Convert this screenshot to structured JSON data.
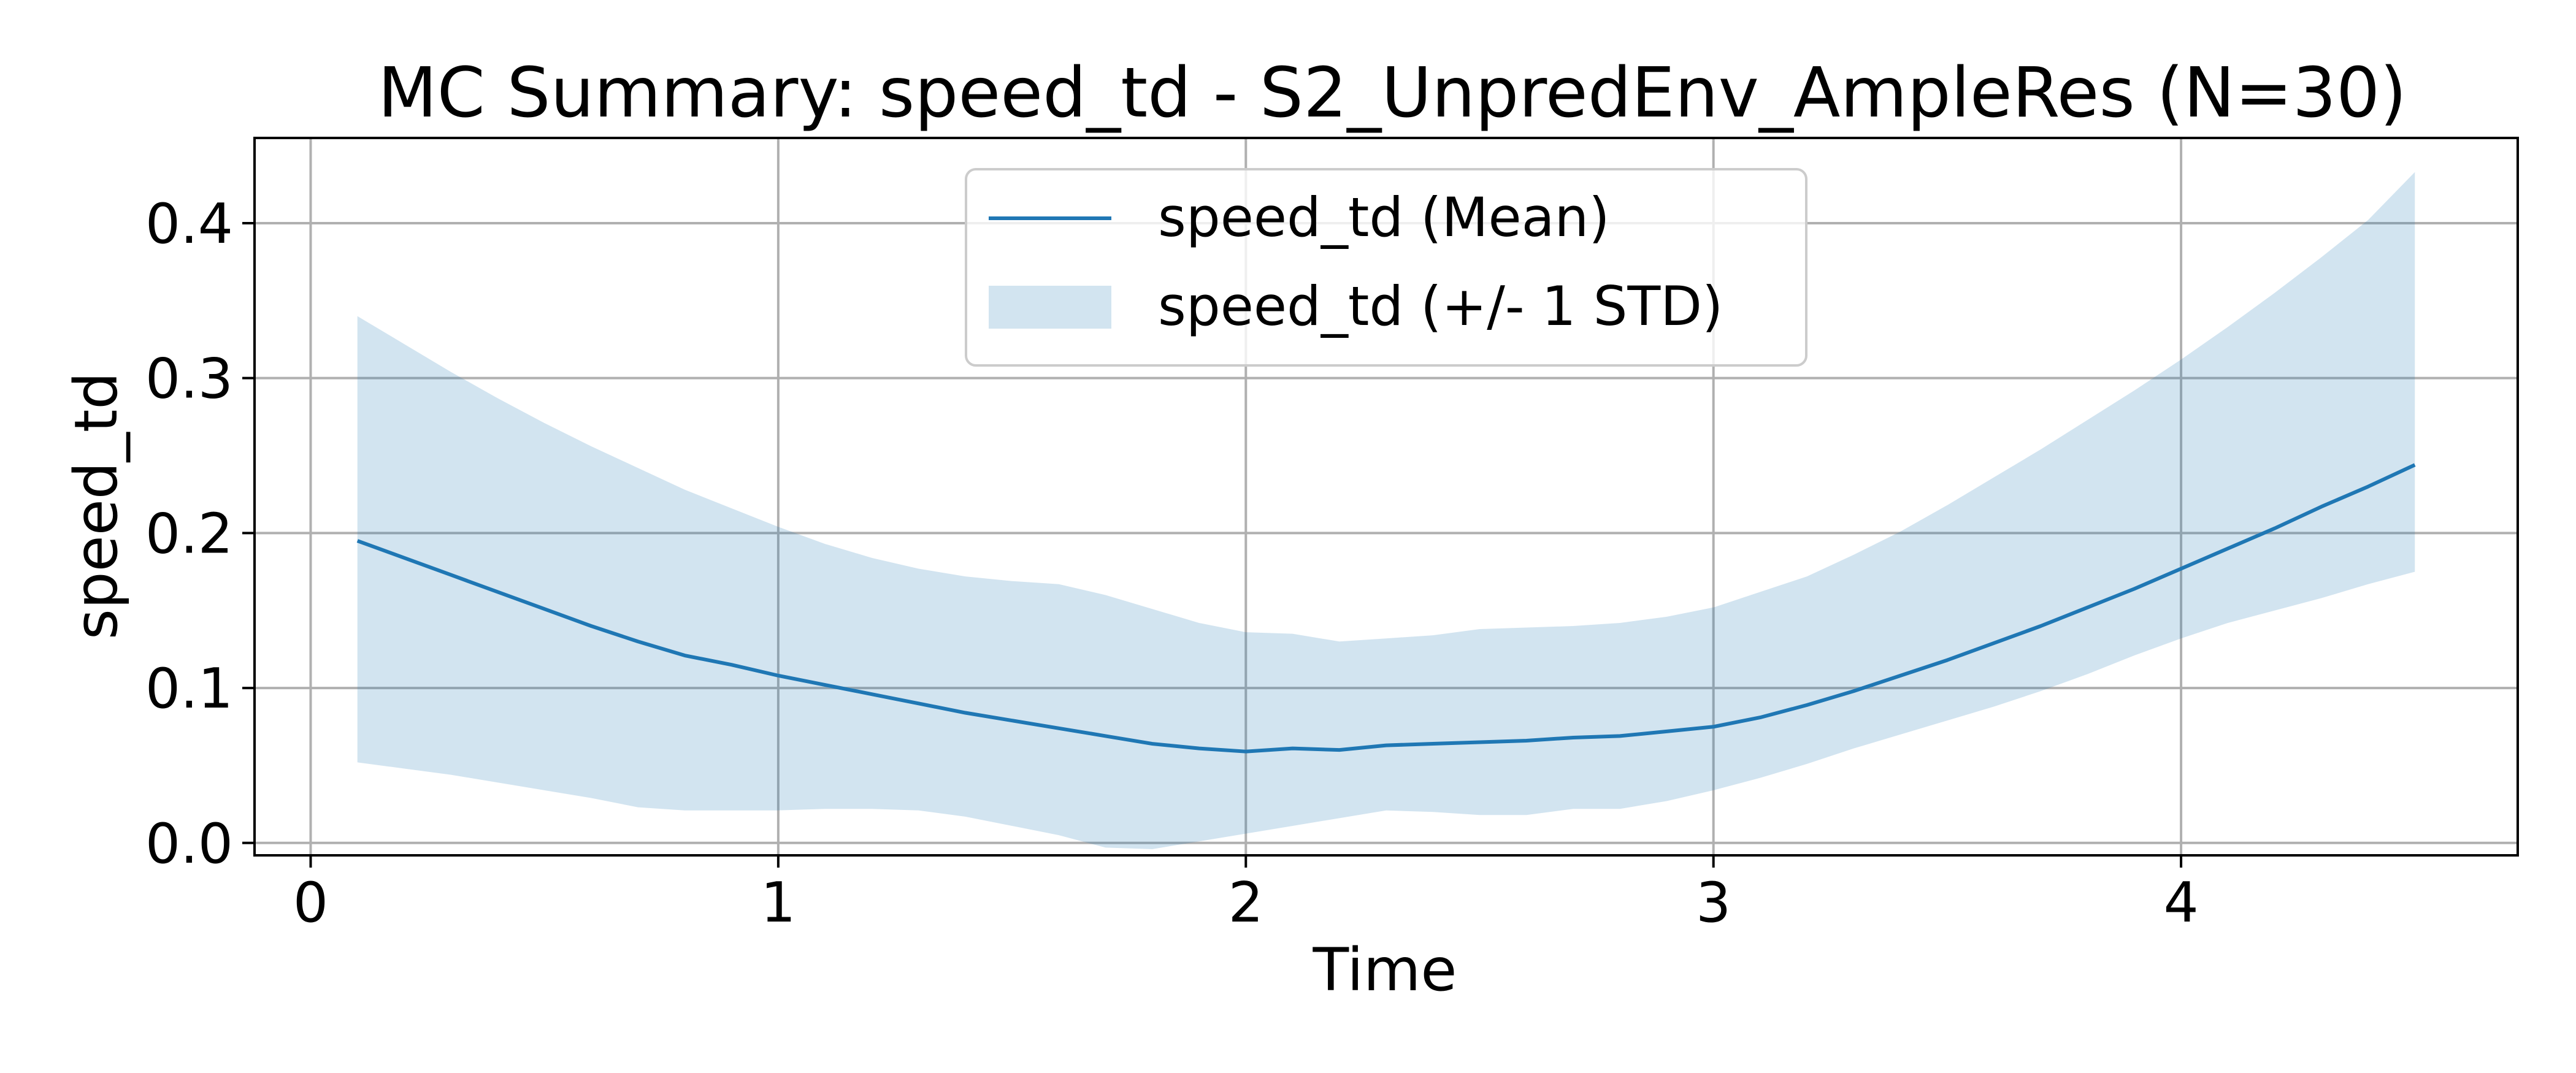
{
  "chart_data": {
    "type": "line",
    "title": "MC Summary: speed_td - S2_UnpredEnv_AmpleRes (N=30)",
    "xlabel": "Time",
    "ylabel": "speed_td",
    "xlim": [
      -0.12,
      4.72
    ],
    "ylim": [
      -0.008,
      0.455
    ],
    "xticks": [
      0,
      1,
      2,
      3,
      4
    ],
    "yticks": [
      0.0,
      0.1,
      0.2,
      0.3,
      0.4
    ],
    "xtick_labels": [
      "0",
      "1",
      "2",
      "3",
      "4"
    ],
    "ytick_labels": [
      "0.0",
      "0.1",
      "0.2",
      "0.3",
      "0.4"
    ],
    "grid": true,
    "legend_position": "top-center",
    "colors": {
      "mean_line": "#1f77b4",
      "std_band": "#1f77b4",
      "grid": "#b0b0b0"
    },
    "x": [
      0.1,
      0.2,
      0.3,
      0.4,
      0.5,
      0.6,
      0.7,
      0.8,
      0.9,
      1.0,
      1.1,
      1.2,
      1.3,
      1.4,
      1.5,
      1.6,
      1.7,
      1.8,
      1.9,
      2.0,
      2.1,
      2.2,
      2.3,
      2.4,
      2.5,
      2.6,
      2.7,
      2.8,
      2.9,
      3.0,
      3.1,
      3.2,
      3.3,
      3.4,
      3.5,
      3.6,
      3.7,
      3.8,
      3.9,
      4.0,
      4.1,
      4.2,
      4.3,
      4.4,
      4.5
    ],
    "series": [
      {
        "name": "speed_td (Mean)",
        "type": "line",
        "values": [
          0.195,
          0.184,
          0.173,
          0.162,
          0.151,
          0.14,
          0.13,
          0.121,
          0.115,
          0.108,
          0.102,
          0.096,
          0.09,
          0.084,
          0.079,
          0.074,
          0.069,
          0.064,
          0.061,
          0.059,
          0.061,
          0.06,
          0.063,
          0.064,
          0.065,
          0.066,
          0.068,
          0.069,
          0.072,
          0.075,
          0.081,
          0.089,
          0.098,
          0.108,
          0.118,
          0.129,
          0.14,
          0.152,
          0.164,
          0.177,
          0.19,
          0.203,
          0.217,
          0.23,
          0.244
        ]
      },
      {
        "name": "speed_td (+/- 1 STD)",
        "type": "band",
        "upper": [
          0.34,
          0.322,
          0.304,
          0.287,
          0.271,
          0.256,
          0.242,
          0.228,
          0.216,
          0.204,
          0.193,
          0.184,
          0.177,
          0.172,
          0.169,
          0.167,
          0.16,
          0.151,
          0.142,
          0.136,
          0.135,
          0.13,
          0.132,
          0.134,
          0.138,
          0.139,
          0.14,
          0.142,
          0.146,
          0.152,
          0.162,
          0.172,
          0.186,
          0.201,
          0.218,
          0.236,
          0.254,
          0.273,
          0.292,
          0.312,
          0.333,
          0.355,
          0.378,
          0.402,
          0.433
        ],
        "lower": [
          0.052,
          0.048,
          0.044,
          0.039,
          0.034,
          0.029,
          0.023,
          0.021,
          0.021,
          0.021,
          0.022,
          0.022,
          0.021,
          0.017,
          0.011,
          0.005,
          -0.003,
          -0.004,
          0.001,
          0.006,
          0.011,
          0.016,
          0.021,
          0.02,
          0.018,
          0.018,
          0.022,
          0.022,
          0.027,
          0.034,
          0.042,
          0.051,
          0.061,
          0.07,
          0.079,
          0.088,
          0.098,
          0.109,
          0.121,
          0.132,
          0.142,
          0.15,
          0.158,
          0.167,
          0.175
        ]
      }
    ]
  }
}
